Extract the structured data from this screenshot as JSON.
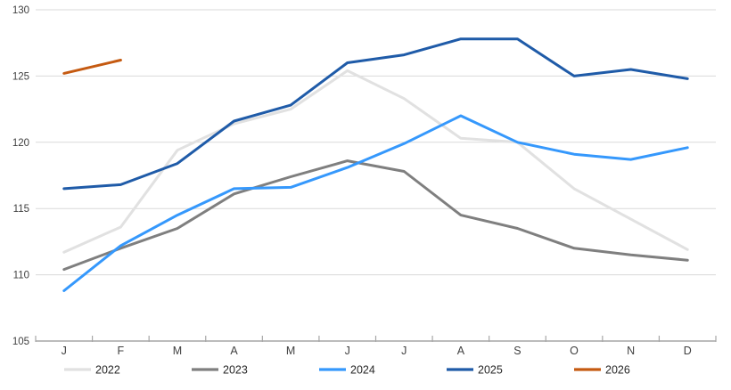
{
  "chart": {
    "background_color": "#ffffff",
    "gridline_color": "#d9d9d9",
    "axis_line_color": "#a6a6a6",
    "tick_color": "#a6a6a6",
    "axis_label_color": "#404040",
    "legend_text_color": "#262626"
  },
  "chart_data": {
    "type": "line",
    "title": "",
    "xlabel": "",
    "ylabel": "",
    "x_labels": [
      "J",
      "F",
      "M",
      "A",
      "M",
      "J",
      "J",
      "A",
      "S",
      "O",
      "N",
      "D"
    ],
    "y_ticks": [
      105,
      110,
      115,
      120,
      125,
      130
    ],
    "ylim": [
      105,
      130
    ],
    "grid": "horizontal",
    "legend_position": "bottom",
    "series": [
      {
        "name": "2022",
        "color": "#e1e1e1",
        "values": [
          111.7,
          113.6,
          119.4,
          121.4,
          122.5,
          125.4,
          123.3,
          120.3,
          120.0,
          116.5,
          114.2,
          111.9
        ]
      },
      {
        "name": "2023",
        "color": "#7f7f7f",
        "values": [
          110.4,
          112.0,
          113.5,
          116.1,
          117.4,
          118.6,
          117.8,
          114.5,
          113.5,
          112.0,
          111.5,
          111.1
        ]
      },
      {
        "name": "2024",
        "color": "#3598fc",
        "values": [
          108.8,
          112.2,
          114.5,
          116.5,
          116.6,
          118.1,
          119.9,
          122.0,
          120.0,
          119.1,
          118.7,
          119.6
        ]
      },
      {
        "name": "2025",
        "color": "#1f5ba8",
        "values": [
          116.5,
          116.8,
          118.4,
          121.6,
          122.8,
          126.0,
          126.6,
          127.8,
          127.8,
          125.0,
          125.5,
          124.8
        ]
      },
      {
        "name": "2026",
        "color": "#c55a11",
        "values": [
          125.2,
          126.2,
          null,
          null,
          null,
          null,
          null,
          null,
          null,
          null,
          null,
          null
        ]
      }
    ]
  }
}
